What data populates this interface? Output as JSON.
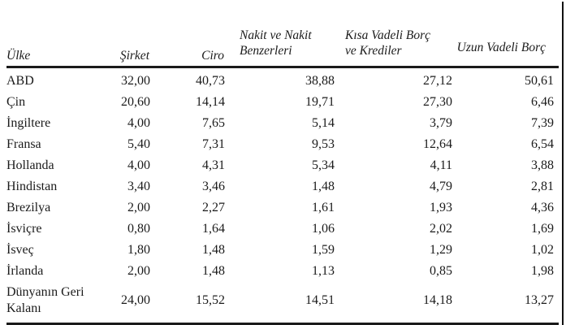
{
  "colors": {
    "background": "#ffffff",
    "text": "#1b1b1b",
    "rule": "#1a1a1a"
  },
  "table": {
    "columns": [
      {
        "key": "ulke",
        "label": "Ülke",
        "lines": [
          "Ülke"
        ]
      },
      {
        "key": "sirket",
        "label": "Şirket",
        "lines": [
          "Şirket"
        ]
      },
      {
        "key": "ciro",
        "label": "Ciro",
        "lines": [
          "Ciro"
        ]
      },
      {
        "key": "nakit",
        "label": "Nakit ve Nakit Benzerleri",
        "lines": [
          "Nakit ve Nakit",
          "Benzerleri"
        ]
      },
      {
        "key": "kisa",
        "label": "Kısa Vadeli Borç ve Krediler",
        "lines": [
          "Kısa Vadeli Borç",
          "ve Krediler"
        ]
      },
      {
        "key": "uzun",
        "label": "Uzun Vadeli Borç",
        "lines": [
          "Uzun Vadeli Borç"
        ]
      }
    ],
    "rows": [
      {
        "country": "ABD",
        "values": [
          "32,00",
          "40,73",
          "38,88",
          "27,12",
          "50,61"
        ]
      },
      {
        "country": "Çin",
        "values": [
          "20,60",
          "14,14",
          "19,71",
          "27,30",
          "6,46"
        ]
      },
      {
        "country": "İngiltere",
        "values": [
          "4,00",
          "7,65",
          "5,14",
          "3,79",
          "7,39"
        ]
      },
      {
        "country": "Fransa",
        "values": [
          "5,40",
          "7,31",
          "9,53",
          "12,64",
          "6,54"
        ]
      },
      {
        "country": "Hollanda",
        "values": [
          "4,00",
          "4,31",
          "5,34",
          "4,11",
          "3,88"
        ]
      },
      {
        "country": "Hindistan",
        "values": [
          "3,40",
          "3,46",
          "1,48",
          "4,79",
          "2,81"
        ]
      },
      {
        "country": "Brezilya",
        "values": [
          "2,00",
          "2,27",
          "1,61",
          "1,93",
          "4,36"
        ]
      },
      {
        "country": "İsviçre",
        "values": [
          "0,80",
          "1,64",
          "1,06",
          "2,02",
          "1,69"
        ]
      },
      {
        "country": "İsveç",
        "values": [
          "1,80",
          "1,48",
          "1,59",
          "1,29",
          "1,02"
        ]
      },
      {
        "country": "İrlanda",
        "values": [
          "2,00",
          "1,48",
          "1,13",
          "0,85",
          "1,98"
        ]
      },
      {
        "country": "Dünyanın Geri Kalanı",
        "values": [
          "24,00",
          "15,52",
          "14,51",
          "14,18",
          "13,27"
        ]
      }
    ]
  }
}
